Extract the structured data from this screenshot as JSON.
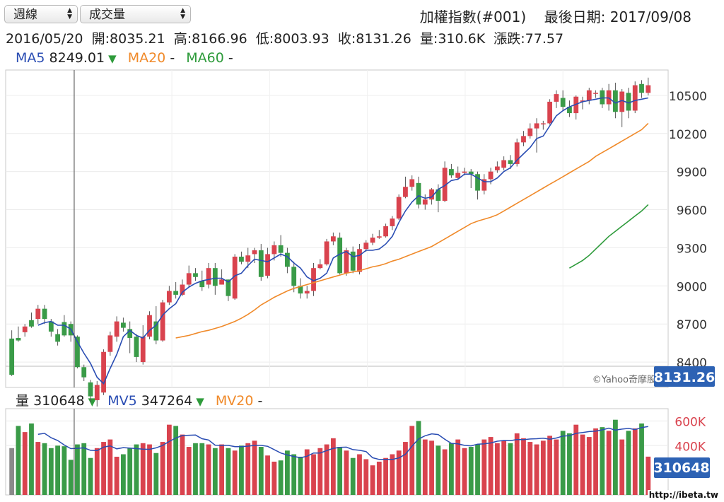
{
  "controls": {
    "period_select": "週線",
    "indicator_select": "成交量"
  },
  "header": {
    "title": "加權指數(#001)",
    "last_date_label": "最後日期:",
    "last_date": "2017/09/08"
  },
  "ohlc": {
    "date": "2016/05/20",
    "open": "開:8035.21",
    "high": "高:8166.96",
    "low": "低:8003.93",
    "close": "收:8131.26",
    "volume": "量:310.6K",
    "change": "漲跌:77.57"
  },
  "ma_legend": {
    "ma5_label": "MA5",
    "ma5_value": "8249.01",
    "ma5_arrow": "▼",
    "ma20_label": "MA20",
    "ma20_value": "-",
    "ma60_label": "MA60",
    "ma60_value": "-"
  },
  "vol_legend": {
    "vol_label": "量",
    "vol_value": "310648",
    "vol_arrow": "▼",
    "mv5_label": "MV5",
    "mv5_value": "347264",
    "mv5_arrow": "▼",
    "mv20_label": "MV20",
    "mv20_value": "-"
  },
  "price_axis_badge": "8131.26",
  "volume_axis_badge": "310648",
  "attribution": "©Yahoo奇摩股",
  "watermark": "http://ibeta.tw",
  "colors": {
    "up": "#d9434e",
    "down": "#3a9b48",
    "ma5": "#2a4db3",
    "ma20": "#f08a2a",
    "ma60": "#2e9b3b",
    "badge": "#2d62b4"
  },
  "chart_data": [
    {
      "type": "candlestick",
      "period": "weekly",
      "ylim": [
        8200,
        10700
      ],
      "y_ticks": [
        8400,
        8700,
        9000,
        9300,
        9600,
        9900,
        10200,
        10500
      ],
      "crosshair_index": 10,
      "candles": [
        [
          8585,
          8300,
          8650,
          8290
        ],
        [
          8590,
          8570,
          8680,
          8560
        ],
        [
          8635,
          8680,
          8700,
          8600
        ],
        [
          8730,
          8680,
          8790,
          8670
        ],
        [
          8740,
          8820,
          8850,
          8700
        ],
        [
          8820,
          8740,
          8850,
          8700
        ],
        [
          8720,
          8640,
          8740,
          8600
        ],
        [
          8620,
          8560,
          8660,
          8530
        ],
        [
          8715,
          8610,
          8770,
          8600
        ],
        [
          8700,
          8610,
          8720,
          8560
        ],
        [
          8600,
          8360,
          8610,
          8350
        ],
        [
          8360,
          8280,
          8380,
          8250
        ],
        [
          8240,
          8130,
          8260,
          8080
        ],
        [
          8100,
          8220,
          8250,
          8050
        ],
        [
          8160,
          8480,
          8500,
          8140
        ],
        [
          8480,
          8610,
          8640,
          8450
        ],
        [
          8600,
          8720,
          8760,
          8560
        ],
        [
          8710,
          8670,
          8750,
          8640
        ],
        [
          8660,
          8590,
          8720,
          8470
        ],
        [
          8600,
          8440,
          8620,
          8400
        ],
        [
          8400,
          8600,
          8690,
          8380
        ],
        [
          8600,
          8770,
          8800,
          8580
        ],
        [
          8720,
          8570,
          8840,
          8540
        ],
        [
          8570,
          8870,
          8890,
          8560
        ],
        [
          8870,
          8960,
          9000,
          8850
        ],
        [
          8960,
          8930,
          9030,
          8900
        ],
        [
          8930,
          9010,
          9050,
          8920
        ],
        [
          9010,
          9100,
          9160,
          8990
        ],
        [
          9100,
          9070,
          9140,
          9040
        ],
        [
          9040,
          8990,
          9120,
          8960
        ],
        [
          9010,
          9140,
          9180,
          8980
        ],
        [
          9140,
          9000,
          9180,
          8930
        ],
        [
          9010,
          9050,
          9130,
          9010
        ],
        [
          9050,
          8920,
          9050,
          8880
        ],
        [
          8900,
          9230,
          9250,
          8890
        ],
        [
          9230,
          9190,
          9270,
          9170
        ],
        [
          9190,
          9240,
          9300,
          9140
        ],
        [
          9250,
          9280,
          9300,
          9180
        ],
        [
          9280,
          9070,
          9330,
          9040
        ],
        [
          9080,
          9250,
          9300,
          9060
        ],
        [
          9250,
          9320,
          9350,
          9200
        ],
        [
          9320,
          9260,
          9400,
          9230
        ],
        [
          9260,
          9150,
          9300,
          9100
        ],
        [
          9150,
          9000,
          9190,
          8950
        ],
        [
          9000,
          8940,
          9060,
          8900
        ],
        [
          8940,
          8960,
          9000,
          8900
        ],
        [
          8960,
          9140,
          9180,
          8920
        ],
        [
          9140,
          9170,
          9210,
          9130
        ],
        [
          9170,
          9350,
          9370,
          9160
        ],
        [
          9350,
          9390,
          9420,
          9320
        ],
        [
          9380,
          9100,
          9420,
          9090
        ],
        [
          9100,
          9280,
          9300,
          9080
        ],
        [
          9270,
          9120,
          9310,
          9100
        ],
        [
          9110,
          9290,
          9330,
          9090
        ],
        [
          9290,
          9340,
          9360,
          9270
        ],
        [
          9340,
          9380,
          9410,
          9320
        ],
        [
          9380,
          9390,
          9440,
          9370
        ],
        [
          9390,
          9470,
          9490,
          9380
        ],
        [
          9470,
          9530,
          9550,
          9440
        ],
        [
          9530,
          9700,
          9720,
          9520
        ],
        [
          9700,
          9780,
          9860,
          9690
        ],
        [
          9780,
          9840,
          9870,
          9750
        ],
        [
          9810,
          9640,
          9860,
          9610
        ],
        [
          9640,
          9680,
          9720,
          9600
        ],
        [
          9680,
          9760,
          9770,
          9640
        ],
        [
          9760,
          9670,
          9800,
          9580
        ],
        [
          9670,
          9930,
          9980,
          9660
        ],
        [
          9920,
          9870,
          9960,
          9850
        ],
        [
          9850,
          9890,
          9940,
          9840
        ],
        [
          9890,
          9900,
          9930,
          9870
        ],
        [
          9900,
          9880,
          9920,
          9770
        ],
        [
          9880,
          9750,
          9900,
          9680
        ],
        [
          9750,
          9840,
          9880,
          9720
        ],
        [
          9840,
          9900,
          9930,
          9800
        ],
        [
          9910,
          9940,
          9980,
          9890
        ],
        [
          9930,
          9990,
          10020,
          9910
        ],
        [
          9990,
          9960,
          10030,
          9920
        ],
        [
          9960,
          10130,
          10160,
          9940
        ],
        [
          10130,
          10180,
          10220,
          10100
        ],
        [
          10180,
          10240,
          10280,
          10160
        ],
        [
          10240,
          10280,
          10320,
          10050
        ],
        [
          10280,
          10280,
          10300,
          10230
        ],
        [
          10280,
          10450,
          10470,
          10270
        ],
        [
          10450,
          10510,
          10540,
          10400
        ],
        [
          10480,
          10410,
          10540,
          10380
        ],
        [
          10410,
          10360,
          10460,
          10330
        ],
        [
          10360,
          10490,
          10500,
          10310
        ],
        [
          10450,
          10460,
          10490,
          10390
        ],
        [
          10460,
          10540,
          10560,
          10430
        ],
        [
          10520,
          10520,
          10540,
          10480
        ],
        [
          10540,
          10430,
          10560,
          10400
        ],
        [
          10430,
          10540,
          10590,
          10380
        ],
        [
          10540,
          10370,
          10600,
          10320
        ],
        [
          10370,
          10530,
          10550,
          10250
        ],
        [
          10520,
          10380,
          10560,
          10320
        ],
        [
          10380,
          10580,
          10610,
          10360
        ],
        [
          10590,
          10520,
          10620,
          10480
        ],
        [
          10520,
          10580,
          10640,
          10500
        ]
      ],
      "ma5": [
        null,
        null,
        null,
        null,
        8690,
        8710,
        8720,
        8690,
        8690,
        8660,
        8560,
        8470,
        8390,
        8280,
        8230,
        8350,
        8460,
        8600,
        8650,
        8610,
        8590,
        8650,
        8690,
        8770,
        8820,
        8860,
        8950,
        8990,
        9020,
        9040,
        9050,
        9060,
        9060,
        9030,
        9080,
        9100,
        9160,
        9210,
        9200,
        9190,
        9220,
        9250,
        9230,
        9180,
        9140,
        9070,
        9040,
        9060,
        9100,
        9220,
        9250,
        9270,
        9230,
        9240,
        9280,
        9280,
        9290,
        9330,
        9390,
        9500,
        9590,
        9660,
        9710,
        9690,
        9700,
        9760,
        9790,
        9830,
        9840,
        9880,
        9880,
        9850,
        9820,
        9820,
        9850,
        9900,
        9930,
        9990,
        10040,
        10090,
        10160,
        10180,
        10260,
        10340,
        10380,
        10410,
        10430,
        10450,
        10460,
        10470,
        10480,
        10480,
        10440,
        10460,
        10440,
        10460,
        10470,
        10480
      ],
      "ma20": [
        null,
        null,
        null,
        null,
        null,
        null,
        null,
        null,
        null,
        null,
        null,
        null,
        null,
        null,
        null,
        null,
        null,
        null,
        null,
        null,
        null,
        null,
        null,
        null,
        null,
        8590,
        8600,
        8610,
        8625,
        8640,
        8650,
        8665,
        8680,
        8700,
        8720,
        8745,
        8775,
        8810,
        8850,
        8880,
        8910,
        8935,
        8960,
        8980,
        8995,
        9010,
        9025,
        9040,
        9055,
        9070,
        9085,
        9100,
        9110,
        9120,
        9135,
        9150,
        9160,
        9175,
        9195,
        9210,
        9230,
        9250,
        9270,
        9290,
        9310,
        9340,
        9370,
        9400,
        9430,
        9460,
        9490,
        9510,
        9525,
        9540,
        9560,
        9590,
        9620,
        9650,
        9680,
        9710,
        9740,
        9770,
        9800,
        9830,
        9860,
        9890,
        9920,
        9950,
        9980,
        10020,
        10050,
        10080,
        10110,
        10140,
        10170,
        10200,
        10230,
        10280
      ],
      "ma60": [
        null,
        null,
        null,
        null,
        null,
        null,
        null,
        null,
        null,
        null,
        null,
        null,
        null,
        null,
        null,
        null,
        null,
        null,
        null,
        null,
        null,
        null,
        null,
        null,
        null,
        null,
        null,
        null,
        null,
        null,
        null,
        null,
        null,
        null,
        null,
        null,
        null,
        null,
        null,
        null,
        null,
        null,
        null,
        null,
        null,
        null,
        null,
        null,
        null,
        null,
        null,
        null,
        null,
        null,
        null,
        null,
        null,
        null,
        null,
        null,
        null,
        null,
        null,
        null,
        null,
        null,
        null,
        null,
        null,
        null,
        null,
        null,
        null,
        null,
        null,
        null,
        null,
        null,
        null,
        null,
        null,
        null,
        null,
        null,
        null,
        9140,
        9170,
        9200,
        9240,
        9290,
        9340,
        9390,
        9430,
        9470,
        9510,
        9550,
        9590,
        9640
      ]
    },
    {
      "type": "bar",
      "title": "成交量",
      "ylim": [
        0,
        700000
      ],
      "y_ticks": [
        400000,
        600000
      ],
      "y_tick_labels": [
        "400K",
        "600K"
      ],
      "volumes": [
        380000,
        560000,
        510000,
        580000,
        430000,
        420000,
        380000,
        400000,
        395000,
        285000,
        410000,
        420000,
        300000,
        380000,
        430000,
        450000,
        310000,
        330000,
        380000,
        410000,
        420000,
        410000,
        340000,
        430000,
        570000,
        560000,
        490000,
        390000,
        420000,
        420000,
        410000,
        380000,
        410000,
        380000,
        360000,
        400000,
        420000,
        440000,
        390000,
        320000,
        270000,
        280000,
        360000,
        330000,
        310000,
        370000,
        330000,
        380000,
        410000,
        460000,
        390000,
        360000,
        300000,
        330000,
        290000,
        240000,
        270000,
        300000,
        330000,
        360000,
        430000,
        560000,
        600000,
        450000,
        440000,
        400000,
        370000,
        420000,
        450000,
        380000,
        390000,
        410000,
        450000,
        470000,
        420000,
        440000,
        420000,
        500000,
        460000,
        430000,
        410000,
        440000,
        480000,
        450000,
        520000,
        500000,
        570000,
        490000,
        470000,
        540000,
        550000,
        520000,
        610000,
        450000,
        520000,
        540000,
        580000,
        310648
      ],
      "mv5": [
        null,
        null,
        null,
        null,
        492000,
        500000,
        464000,
        442000,
        405000,
        376000,
        378000,
        382000,
        362000,
        359000,
        388000,
        398000,
        374000,
        384000,
        380000,
        376000,
        372000,
        370000,
        382000,
        402000,
        434000,
        462000,
        482000,
        484000,
        486000,
        456000,
        446000,
        404000,
        402000,
        402000,
        392000,
        392000,
        396000,
        402000,
        402000,
        394000,
        368000,
        340000,
        324000,
        312000,
        302000,
        314000,
        340000,
        340000,
        360000,
        378000,
        386000,
        388000,
        368000,
        362000,
        352000,
        302000,
        288000,
        288000,
        288000,
        300000,
        330000,
        396000,
        454000,
        480000,
        496000,
        490000,
        452000,
        418000,
        414000,
        402000,
        398000,
        412000,
        414000,
        422000,
        436000,
        442000,
        440000,
        450000,
        448000,
        454000,
        456000,
        460000,
        452000,
        462000,
        478000,
        480000,
        500000,
        506000,
        514000,
        518000,
        528000,
        542000,
        526000,
        534000,
        540000,
        530000,
        547000,
        555000
      ],
      "mv20": [
        null,
        null,
        null,
        null,
        null,
        null,
        null,
        null,
        null,
        null,
        null,
        null,
        null,
        null,
        null,
        null,
        null,
        null,
        null,
        null,
        null,
        null,
        null,
        null,
        null,
        null,
        null,
        null,
        null,
        null,
        null,
        null,
        null,
        null,
        null,
        null,
        null,
        null,
        null,
        null,
        null,
        null,
        null,
        null,
        null,
        null,
        null,
        null,
        null,
        null,
        null,
        null,
        null,
        null,
        null,
        null,
        null,
        null,
        null,
        null,
        null,
        null,
        null,
        null,
        null,
        null,
        null,
        null,
        null,
        null,
        null,
        null,
        null,
        null,
        null,
        null,
        null,
        null,
        null,
        null,
        null,
        null,
        null,
        null,
        null,
        null,
        null,
        null,
        null,
        null,
        null,
        null,
        null,
        null,
        null,
        null,
        null,
        null
      ]
    }
  ]
}
